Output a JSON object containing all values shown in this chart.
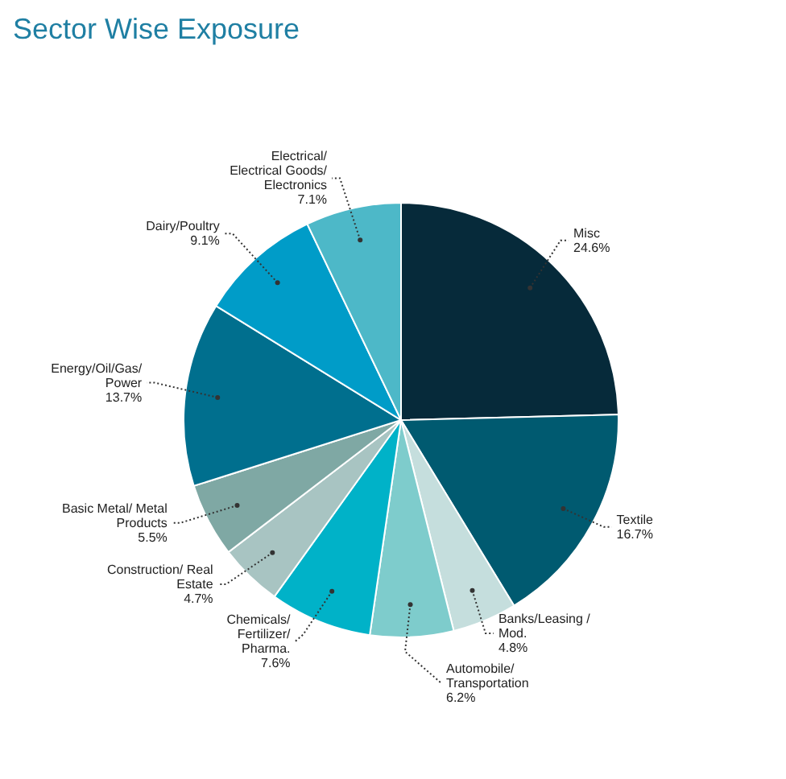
{
  "chart_data": {
    "type": "pie",
    "title": "Sector Wise Exposure",
    "categories": [
      "Misc",
      "Textile",
      "Banks/Leasing /Mod.",
      "Automobile/ Transportation",
      "Chemicals/ Fertilizer/ Pharma.",
      "Construction/ Real Estate",
      "Basic Metal/ Metal Products",
      "Energy/Oil/Gas/Power",
      "Dairy/Poultry",
      "Electrical/Electrical Goods/Electronics"
    ],
    "values": [
      24.6,
      16.7,
      4.8,
      6.2,
      7.6,
      4.7,
      5.5,
      13.7,
      9.1,
      7.1
    ],
    "value_labels": [
      "24.6%",
      "16.7%",
      "4.8%",
      "6.2%",
      "7.6%",
      "4.7%",
      "5.5%",
      "13.7%",
      "9.1%",
      "7.1%"
    ],
    "colors": [
      "#062a3a",
      "#005a70",
      "#c5dedd",
      "#7ecccc",
      "#00b2c8",
      "#a8c4c2",
      "#7fa8a4",
      "#006f8e",
      "#009cc8",
      "#4db8c8"
    ],
    "legend": false
  }
}
